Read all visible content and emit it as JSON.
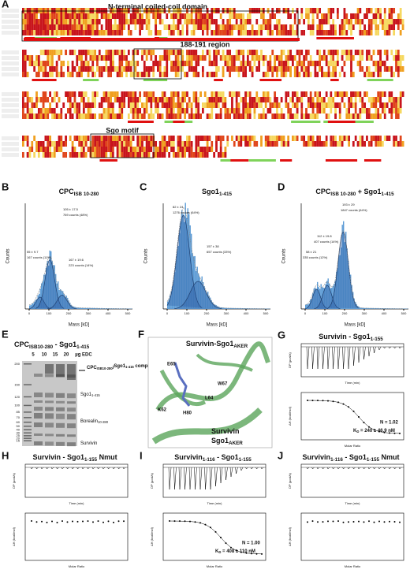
{
  "panel_a": {
    "label": "A",
    "headings": [
      "N-terminal coiled-coil domain",
      "188-191 region",
      "Sgo motif"
    ]
  },
  "histograms": [
    {
      "label": "B",
      "title": [
        "CPC",
        "ISB 10-280"
      ],
      "ylabel": "Counts",
      "xlabel": "Mass [kD]",
      "xticks": [
        "0",
        "100",
        "200",
        "300",
        "400",
        "500"
      ],
      "annotations": [
        "105 ± 17.5",
        "769 counts (48%)",
        "55 ± 9.7",
        "167 counts (11%)",
        "167 ± 19.6",
        "223 counts (14%)"
      ]
    },
    {
      "label": "C",
      "title": [
        "Sgo1",
        "1-415"
      ],
      "ylabel": "Counts",
      "xlabel": "Mass [kD]",
      "xticks": [
        "0",
        "100",
        "200",
        "300",
        "400",
        "500"
      ],
      "annotations": [
        "82 ± 24",
        "1276 counts (64%)",
        "157 ± 38",
        "657 counts (33%)"
      ]
    },
    {
      "label": "D",
      "title": [
        "CPC",
        "ISB 10-280",
        " + Sgo1",
        "1-415"
      ],
      "ylabel": "Counts",
      "xlabel": "Mass [kD]",
      "xticks": [
        "0",
        "100",
        "200",
        "300",
        "400",
        "500"
      ],
      "annotations": [
        "193 ± 29",
        "1847 counts (64%)",
        "112 ± 19.8",
        "407 counts (14%)",
        "58 ± 21",
        "335 counts (12%)"
      ]
    }
  ],
  "gel": {
    "label": "E",
    "title": [
      "CPC",
      "ISB10-280",
      " - Sgo1",
      "1-415"
    ],
    "lanes": [
      "5",
      "10",
      "15",
      "20",
      "µg EDC"
    ],
    "markers": [
      "200",
      "150",
      "120",
      "100",
      "85",
      "70",
      "60",
      "50",
      "40",
      "30",
      "25",
      "20",
      "15"
    ],
    "complex": [
      "CPC",
      "ISB10-280",
      "/",
      "",
      "Sgo1",
      "1-415",
      " complex"
    ],
    "bands": [
      [
        "Sgo1",
        "1-415"
      ],
      [
        "Borealin",
        "10-280"
      ],
      [
        "Survivin"
      ]
    ]
  },
  "structure": {
    "label": "F",
    "title": [
      "Survivin-Sgo1",
      "AKER"
    ],
    "residues": [
      "E65",
      "W67",
      "L64",
      "K62",
      "H80"
    ],
    "legend": [
      [
        "Survivin"
      ],
      [
        "Sgo1",
        "AKER"
      ]
    ]
  },
  "itc": [
    {
      "label": "G",
      "title": [
        "Survivin - Sgo1",
        "1-155"
      ],
      "dp": "DP (µcal/s)",
      "time": "Time (min)",
      "dh": "ΔH (kcal/mol)",
      "ratio": "Molar Ratio",
      "n": "N = 1.02",
      "kd": [
        "K",
        "D",
        " = 240 ± 46.9 nM"
      ]
    },
    {
      "label": "H",
      "title": [
        "Survivin - Sgo1",
        "1-155",
        " Nmut"
      ],
      "dp": "DP (µcal/s)",
      "time": "Time (min)",
      "dh": "ΔH (kcal/mol)",
      "ratio": "Molar Ratio"
    },
    {
      "label": "I",
      "title": [
        "Survivin",
        "1-116",
        " - Sgo1",
        "1-155"
      ],
      "dp": "DP (µcal/s)",
      "time": "Time (min)",
      "dh": "ΔH (kcal/mol)",
      "ratio": "Molar Ratio",
      "n": "N = 1.00",
      "kd": [
        "K",
        "D",
        " = 408 ± 110 nM"
      ]
    },
    {
      "label": "J",
      "title": [
        "Survivin",
        "1-116",
        " - Sgo1",
        "1-155",
        " Nmut"
      ],
      "dp": "DP (µcal/s)",
      "time": "Time (min)",
      "dh": "ΔH (kcal/mol)",
      "ratio": "Molar Ratio"
    }
  ]
}
